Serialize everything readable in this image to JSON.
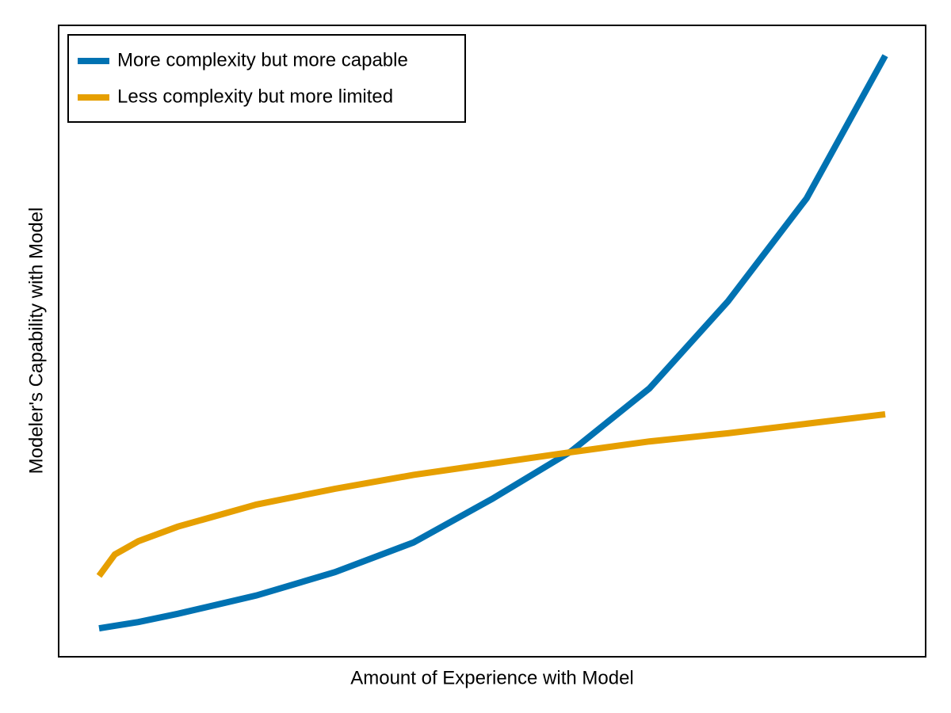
{
  "chart_data": {
    "type": "line",
    "x_label": "Amount of Experience with Model",
    "y_label": "Modeler's Capability with Model",
    "x": [
      0,
      0.02,
      0.05,
      0.1,
      0.2,
      0.3,
      0.4,
      0.5,
      0.6,
      0.7,
      0.8,
      0.9,
      1.0
    ],
    "series": [
      {
        "name": "More complexity but more capable",
        "color": "#0072b2",
        "values": [
          0.045,
          0.049,
          0.055,
          0.068,
          0.097,
          0.134,
          0.181,
          0.25,
          0.325,
          0.425,
          0.563,
          0.726,
          0.952
        ]
      },
      {
        "name": "Less complexity but more limited",
        "color": "#e69f00",
        "values": [
          0.128,
          0.162,
          0.183,
          0.206,
          0.241,
          0.266,
          0.288,
          0.306,
          0.324,
          0.341,
          0.354,
          0.369,
          0.384
        ]
      }
    ],
    "xlim": [
      -0.0514,
      1.0514
    ],
    "ylim": [
      0,
      1
    ],
    "legend": "upper left"
  }
}
